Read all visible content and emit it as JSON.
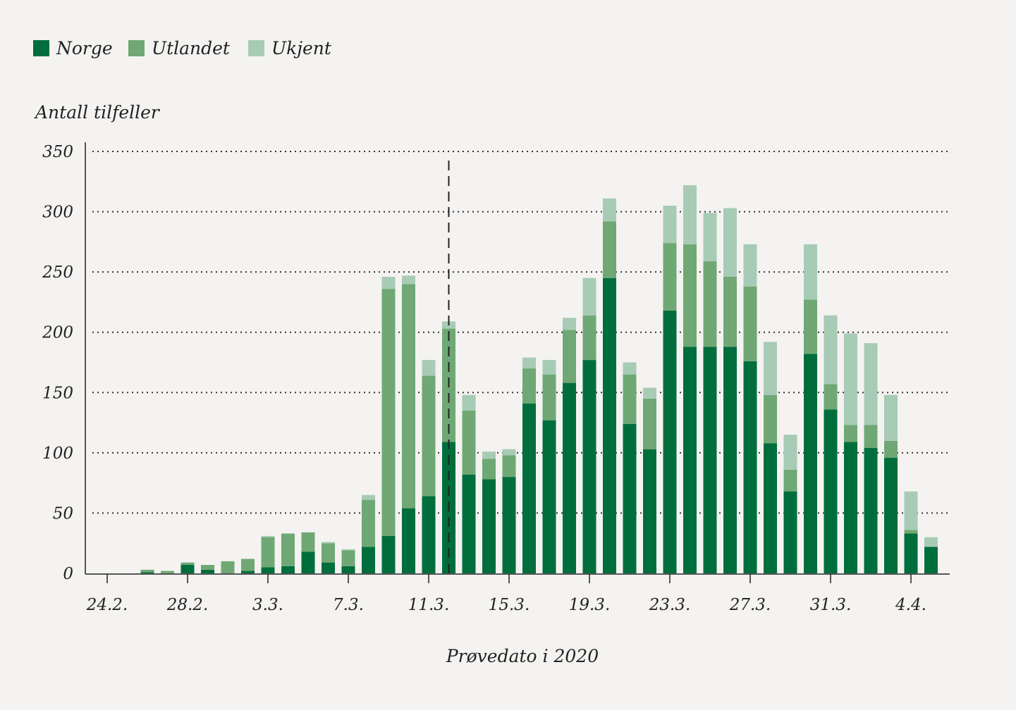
{
  "chart_data": {
    "type": "bar",
    "stacked": true,
    "ylabel": "Antall tilfeller",
    "xlabel": "Prøvedato i 2020",
    "ylim": [
      0,
      350
    ],
    "yticks": [
      0,
      50,
      100,
      150,
      200,
      250,
      300,
      350
    ],
    "grid": "horizontal dotted",
    "legend_position": "top-left",
    "reference_line": {
      "x": "12.3.",
      "style": "dashed"
    },
    "xtick_labels": [
      "24.2.",
      "28.2.",
      "3.3.",
      "7.3.",
      "11.3.",
      "15.3.",
      "19.3.",
      "23.3.",
      "27.3.",
      "31.3.",
      "4.4."
    ],
    "categories": [
      "24.2.",
      "25.2.",
      "26.2.",
      "27.2.",
      "28.2.",
      "29.2.",
      "1.3.",
      "2.3.",
      "3.3.",
      "4.3.",
      "5.3.",
      "6.3.",
      "7.3.",
      "8.3.",
      "9.3.",
      "10.3.",
      "11.3.",
      "12.3.",
      "13.3.",
      "14.3.",
      "15.3.",
      "16.3.",
      "17.3.",
      "18.3.",
      "19.3.",
      "20.3.",
      "21.3.",
      "22.3.",
      "23.3.",
      "24.3.",
      "25.3.",
      "26.3.",
      "27.3.",
      "28.3.",
      "29.3.",
      "30.3.",
      "31.3.",
      "1.4.",
      "2.4.",
      "3.4.",
      "4.4.",
      "5.4."
    ],
    "series": [
      {
        "name": "Norge",
        "color": "#006e3c",
        "values": [
          0,
          0,
          1,
          0,
          7,
          3,
          0,
          2,
          5,
          6,
          18,
          9,
          6,
          22,
          31,
          54,
          64,
          109,
          82,
          78,
          80,
          141,
          127,
          158,
          177,
          245,
          124,
          103,
          218,
          188,
          188,
          188,
          176,
          108,
          68,
          182,
          136,
          109,
          104,
          96,
          33,
          22
        ]
      },
      {
        "name": "Utlandet",
        "color": "#6fa874",
        "values": [
          0,
          0,
          2,
          2,
          2,
          4,
          10,
          10,
          25,
          27,
          16,
          16,
          13,
          39,
          205,
          186,
          100,
          94,
          53,
          17,
          18,
          29,
          38,
          44,
          37,
          47,
          41,
          42,
          56,
          85,
          71,
          58,
          62,
          40,
          18,
          45,
          21,
          14,
          19,
          14,
          3,
          0
        ]
      },
      {
        "name": "Ukjent",
        "color": "#a8cbb5",
        "values": [
          0,
          0,
          0,
          0,
          0,
          0,
          0,
          0,
          1,
          0,
          0,
          1,
          1,
          4,
          10,
          7,
          13,
          6,
          13,
          6,
          5,
          9,
          12,
          10,
          31,
          19,
          10,
          9,
          31,
          49,
          40,
          57,
          35,
          44,
          29,
          46,
          57,
          76,
          68,
          38,
          32,
          8
        ]
      }
    ]
  }
}
